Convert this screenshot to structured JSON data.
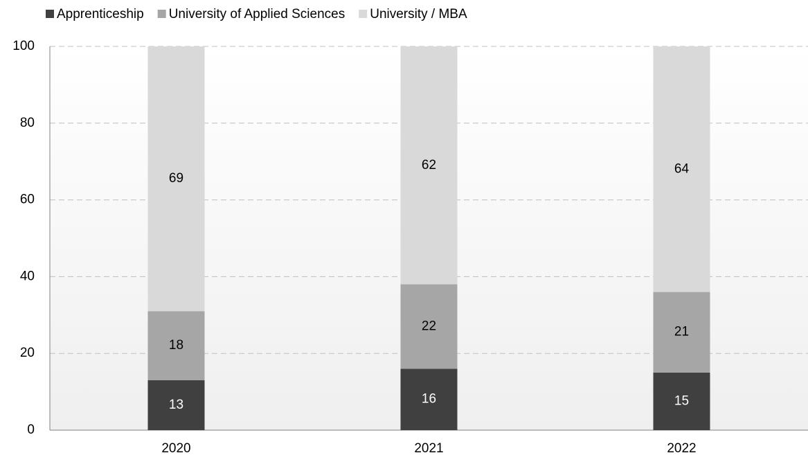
{
  "chart_data": {
    "type": "stacked_bar",
    "categories": [
      "2020",
      "2021",
      "2022"
    ],
    "series": [
      {
        "name": "Apprenticeship",
        "color": "#404040",
        "values": [
          13,
          16,
          15
        ]
      },
      {
        "name": "University of Applied Sciences",
        "color": "#a6a6a6",
        "values": [
          18,
          22,
          21
        ]
      },
      {
        "name": "University / MBA",
        "color": "#d9d9d9",
        "values": [
          69,
          62,
          64
        ]
      }
    ],
    "ylim": [
      0,
      100
    ],
    "yticks": [
      0,
      20,
      40,
      60,
      80,
      100
    ],
    "grid": true,
    "legend": "top-left"
  }
}
